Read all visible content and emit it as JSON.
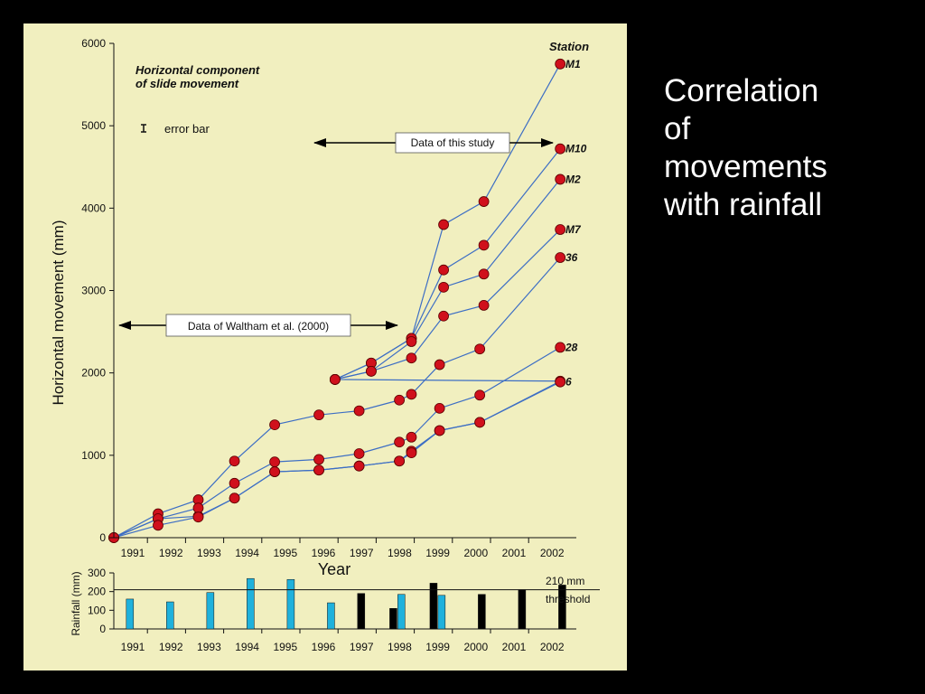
{
  "slide": {
    "title_lines": [
      "Correlation",
      "of",
      "movements",
      "with rainfall"
    ]
  },
  "colors": {
    "background": "#000000",
    "panel": "#f1efbf",
    "line": "#3d6ec4",
    "point_fill": "#d0101c",
    "rain_blue": "#1fb1dc",
    "rain_black": "#000000"
  },
  "chart_data": [
    {
      "type": "line",
      "title": "Horizontal component of slide movement",
      "title_lines": [
        "Horizontal component",
        "of slide movement"
      ],
      "xlabel": "Year",
      "ylabel": "Horizontal movement (mm)",
      "ylim": [
        0,
        6000
      ],
      "yticks": [
        0,
        1000,
        2000,
        3000,
        4000,
        5000,
        6000
      ],
      "xticks": [
        "1991",
        "1992",
        "1993",
        "1994",
        "1995",
        "1996",
        "1997",
        "1998",
        "1999",
        "2000",
        "2001",
        "2002"
      ],
      "legend_title": "Station",
      "error_bar_label": "error bar",
      "annotations": {
        "this_study": "Data of this study",
        "waltham": "Data of Waltham et al. (2000)"
      },
      "series": [
        {
          "name": "M1",
          "points": [
            [
              1990.8,
              0
            ],
            [
              1991.9,
              230
            ],
            [
              1992.9,
              260
            ],
            [
              1993.8,
              480
            ],
            [
              1994.8,
              800
            ],
            [
              1995.9,
              820
            ],
            [
              1996.9,
              870
            ],
            [
              1997.9,
              930
            ],
            [
              1998.2,
              1050
            ],
            [
              1998.9,
              1300
            ],
            [
              1999.9,
              1400
            ],
            [
              2001.9,
              1900
            ],
            [
              1996.3,
              1920
            ],
            [
              1997.2,
              2120
            ],
            [
              1998.2,
              2420
            ],
            [
              1999.0,
              3800
            ],
            [
              2000.0,
              4080
            ],
            [
              2001.9,
              5750
            ]
          ]
        },
        {
          "name": "M10",
          "points": [
            [
              1996.3,
              1920
            ],
            [
              1997.2,
              2120
            ],
            [
              1998.2,
              2420
            ],
            [
              1999.0,
              3250
            ],
            [
              2000.0,
              3550
            ],
            [
              2001.9,
              4720
            ]
          ]
        },
        {
          "name": "M2",
          "points": [
            [
              1996.3,
              1920
            ],
            [
              1997.2,
              2020
            ],
            [
              1998.2,
              2380
            ],
            [
              1999.0,
              3040
            ],
            [
              2000.0,
              3200
            ],
            [
              2001.9,
              4350
            ]
          ]
        },
        {
          "name": "M7",
          "points": [
            [
              1996.3,
              1920
            ],
            [
              1997.2,
              2020
            ],
            [
              1998.2,
              2180
            ],
            [
              1999.0,
              2690
            ],
            [
              2000.0,
              2820
            ],
            [
              2001.9,
              3740
            ]
          ]
        },
        {
          "name": "36",
          "points": [
            [
              1990.8,
              0
            ],
            [
              1991.9,
              290
            ],
            [
              1992.9,
              460
            ],
            [
              1993.8,
              930
            ],
            [
              1994.8,
              1370
            ],
            [
              1995.9,
              1490
            ],
            [
              1996.9,
              1540
            ],
            [
              1997.9,
              1670
            ],
            [
              1998.2,
              1740
            ],
            [
              1998.9,
              2100
            ],
            [
              1999.9,
              2290
            ],
            [
              2001.9,
              3400
            ]
          ]
        },
        {
          "name": "28",
          "points": [
            [
              1990.8,
              0
            ],
            [
              1991.9,
              230
            ],
            [
              1992.9,
              360
            ],
            [
              1993.8,
              660
            ],
            [
              1994.8,
              920
            ],
            [
              1995.9,
              950
            ],
            [
              1996.9,
              1020
            ],
            [
              1997.9,
              1160
            ],
            [
              1998.2,
              1220
            ],
            [
              1998.9,
              1570
            ],
            [
              1999.9,
              1730
            ],
            [
              2001.9,
              2310
            ]
          ]
        },
        {
          "name": "6",
          "points": [
            [
              1990.8,
              0
            ],
            [
              1991.9,
              150
            ],
            [
              1992.9,
              250
            ],
            [
              1993.8,
              480
            ],
            [
              1994.8,
              800
            ],
            [
              1995.9,
              820
            ],
            [
              1996.9,
              870
            ],
            [
              1997.9,
              930
            ],
            [
              1998.2,
              1030
            ],
            [
              1998.9,
              1300
            ],
            [
              1999.9,
              1400
            ],
            [
              2001.9,
              1890
            ]
          ]
        }
      ]
    },
    {
      "type": "bar",
      "ylabel": "Rainfall (mm)",
      "ylim": [
        0,
        300
      ],
      "yticks": [
        0,
        100,
        200,
        300
      ],
      "xticks": [
        "1991",
        "1992",
        "1993",
        "1994",
        "1995",
        "1996",
        "1997",
        "1998",
        "1999",
        "2000",
        "2001",
        "2002"
      ],
      "threshold": 210,
      "threshold_label_lines": [
        "210 mm",
        "threshold"
      ],
      "bars": [
        {
          "x": 1991.2,
          "value": 160,
          "color": "blue"
        },
        {
          "x": 1992.2,
          "value": 145,
          "color": "blue"
        },
        {
          "x": 1993.2,
          "value": 195,
          "color": "blue"
        },
        {
          "x": 1994.2,
          "value": 270,
          "color": "blue"
        },
        {
          "x": 1995.2,
          "value": 265,
          "color": "blue"
        },
        {
          "x": 1996.2,
          "value": 140,
          "color": "blue"
        },
        {
          "x": 1996.95,
          "value": 190,
          "color": "black"
        },
        {
          "x": 1997.75,
          "value": 110,
          "color": "black"
        },
        {
          "x": 1997.95,
          "value": 185,
          "color": "blue"
        },
        {
          "x": 1998.75,
          "value": 245,
          "color": "black"
        },
        {
          "x": 1998.95,
          "value": 180,
          "color": "blue"
        },
        {
          "x": 1999.95,
          "value": 185,
          "color": "black"
        },
        {
          "x": 2000.95,
          "value": 210,
          "color": "black"
        },
        {
          "x": 2001.95,
          "value": 235,
          "color": "black"
        }
      ]
    }
  ]
}
